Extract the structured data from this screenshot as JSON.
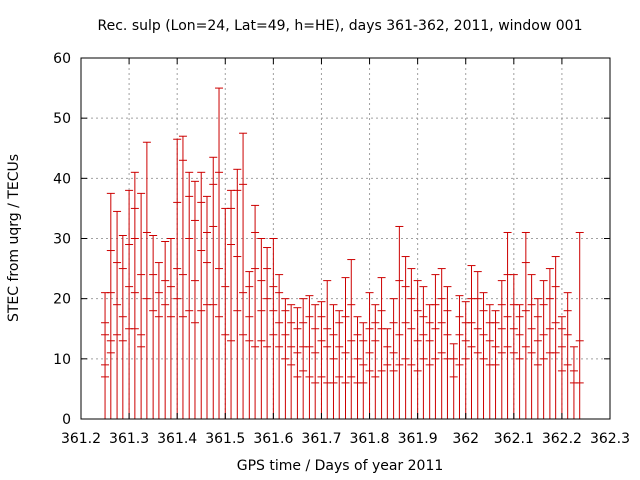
{
  "chart_data": {
    "type": "scatter",
    "title": "Rec. sulp (Lon=24, Lat=49, h=HE), days 361-362, 2011, window 001",
    "xlabel": "GPS time / Days of year 2011",
    "ylabel": "STEC from uqrg / TECUs",
    "xlim": [
      361.2,
      362.3
    ],
    "ylim": [
      0,
      60
    ],
    "xticks": [
      361.2,
      361.3,
      361.4,
      361.5,
      361.6,
      361.7,
      361.8,
      361.9,
      362.0,
      362.1,
      362.2,
      362.3
    ],
    "xtick_labels": [
      "361.2",
      "361.3",
      "361.4",
      "361.5",
      "361.6",
      "361.7",
      "361.8",
      "361.9",
      "362",
      "362.1",
      "362.2",
      "362.3"
    ],
    "yticks": [
      0,
      10,
      20,
      30,
      40,
      50,
      60
    ],
    "ytick_labels": [
      "0",
      "10",
      "20",
      "30",
      "40",
      "50",
      "60"
    ],
    "grid": true,
    "series_color": "#cc0000",
    "series": [
      {
        "style": "impulses_with_points",
        "x": [
          361.25,
          361.262,
          361.275,
          361.287,
          361.3,
          361.312,
          361.325,
          361.337,
          361.35,
          361.362,
          361.375,
          361.387,
          361.4,
          361.412,
          361.425,
          361.437,
          361.45,
          361.462,
          361.475,
          361.487,
          361.5,
          361.512,
          361.525,
          361.537,
          361.55,
          361.562,
          361.575,
          361.587,
          361.6,
          361.612,
          361.625,
          361.637,
          361.65,
          361.662,
          361.675,
          361.687,
          361.7,
          361.712,
          361.725,
          361.737,
          361.75,
          361.762,
          361.775,
          361.787,
          361.8,
          361.812,
          361.825,
          361.837,
          361.85,
          361.862,
          361.875,
          361.887,
          361.9,
          361.912,
          361.925,
          361.937,
          361.95,
          361.962,
          361.975,
          361.987,
          362.0,
          362.012,
          362.025,
          362.037,
          362.05,
          362.062,
          362.075,
          362.087,
          362.1,
          362.112,
          362.125,
          362.137,
          362.15,
          362.162,
          362.175,
          362.187,
          362.2,
          362.212,
          362.225,
          362.237
        ],
        "y": [
          21,
          37.5,
          34.5,
          30.5,
          38,
          41,
          37.5,
          46,
          30.5,
          26,
          29.5,
          30,
          46.5,
          47,
          41,
          39.5,
          41,
          37,
          43.5,
          55,
          35,
          38,
          41.5,
          47.5,
          24.5,
          35.5,
          30,
          28.5,
          30,
          24,
          20,
          19,
          18.5,
          20,
          20.5,
          19,
          19.5,
          23,
          19,
          18,
          23.5,
          26.5,
          17,
          16,
          21,
          19,
          23.5,
          15,
          20,
          32,
          27,
          25,
          23,
          22,
          19,
          24,
          25,
          22,
          12.5,
          20.5,
          19.5,
          25.5,
          24.5,
          21,
          19,
          18,
          23,
          31,
          24,
          19,
          31,
          24,
          20,
          23,
          25,
          27,
          17,
          21,
          12,
          31
        ],
        "errors": [
          [
            7,
            9,
            14,
            16
          ],
          [
            11,
            13,
            21,
            28
          ],
          [
            14,
            19,
            26
          ],
          [
            13,
            17,
            25
          ],
          [
            15,
            22,
            29
          ],
          [
            15,
            21,
            30,
            35
          ],
          [
            12,
            14,
            24
          ],
          [
            20,
            31
          ],
          [
            18,
            24
          ],
          [
            17,
            21
          ],
          [
            19,
            23
          ],
          [
            17,
            22
          ],
          [
            20,
            25,
            36
          ],
          [
            17,
            24,
            43
          ],
          [
            18,
            30,
            37
          ],
          [
            16,
            23,
            33
          ],
          [
            18,
            28,
            36
          ],
          [
            19,
            26,
            31
          ],
          [
            19,
            32,
            39
          ],
          [
            17,
            25,
            41
          ],
          [
            14,
            22
          ],
          [
            13,
            29,
            35
          ],
          [
            18,
            27,
            38
          ],
          [
            14,
            21,
            39
          ],
          [
            13,
            17,
            22
          ],
          [
            12,
            25,
            31
          ],
          [
            13,
            18,
            23
          ],
          [
            12,
            20,
            25
          ],
          [
            14,
            18,
            22
          ],
          [
            12,
            16,
            21
          ],
          [
            10,
            14,
            18
          ],
          [
            9,
            12,
            16
          ],
          [
            7,
            11,
            15
          ],
          [
            8,
            12,
            16
          ],
          [
            7,
            12,
            17
          ],
          [
            6,
            11,
            15
          ],
          [
            7,
            13,
            17
          ],
          [
            6,
            12,
            15
          ],
          [
            6,
            10,
            14
          ],
          [
            7,
            12,
            16
          ],
          [
            6,
            11,
            17
          ],
          [
            7,
            13,
            19
          ],
          [
            6,
            10,
            14
          ],
          [
            6,
            9,
            13
          ],
          [
            8,
            11,
            15
          ],
          [
            7,
            13,
            16
          ],
          [
            8,
            15,
            18
          ],
          [
            9,
            12
          ],
          [
            8,
            11,
            16
          ],
          [
            9,
            14,
            23
          ],
          [
            10,
            16,
            22
          ],
          [
            9,
            15,
            20
          ],
          [
            8,
            13,
            18
          ],
          [
            10,
            14,
            17
          ],
          [
            9,
            13,
            16
          ],
          [
            10,
            15,
            19
          ],
          [
            11,
            16,
            20
          ],
          [
            10,
            14,
            18
          ],
          [
            7,
            10
          ],
          [
            9,
            14,
            17
          ],
          [
            10,
            13,
            16
          ],
          [
            12,
            16,
            20
          ],
          [
            11,
            15,
            20
          ],
          [
            10,
            14,
            18
          ],
          [
            9,
            13,
            16
          ],
          [
            9,
            12,
            16
          ],
          [
            11,
            15,
            19
          ],
          [
            12,
            17,
            24
          ],
          [
            11,
            15,
            19
          ],
          [
            10,
            14,
            17
          ],
          [
            12,
            18,
            26
          ],
          [
            11,
            15,
            19
          ],
          [
            9,
            13,
            17
          ],
          [
            10,
            14,
            19
          ],
          [
            11,
            15,
            20
          ],
          [
            11,
            16,
            22
          ],
          [
            8,
            12,
            15
          ],
          [
            9,
            14,
            18
          ],
          [
            6,
            8
          ],
          [
            6,
            13
          ]
        ]
      }
    ]
  }
}
